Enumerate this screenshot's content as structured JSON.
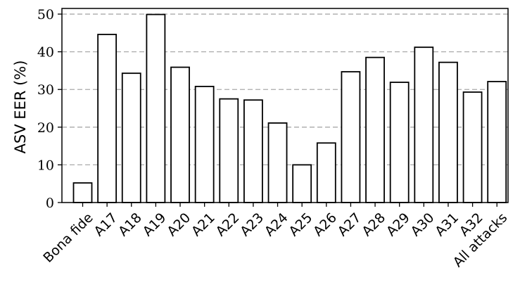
{
  "chart_data": {
    "type": "bar",
    "categories": [
      "Bona fide",
      "A17",
      "A18",
      "A19",
      "A20",
      "A21",
      "A22",
      "A23",
      "A24",
      "A25",
      "A26",
      "A27",
      "A28",
      "A29",
      "A30",
      "A31",
      "A32",
      "All attacks"
    ],
    "values": [
      5.2,
      44.6,
      34.3,
      49.9,
      35.9,
      30.8,
      27.5,
      27.2,
      21.1,
      10.0,
      15.8,
      34.7,
      38.5,
      31.9,
      41.2,
      37.2,
      29.3,
      32.1
    ],
    "xlabel": "",
    "ylabel": "ASV EER (%)",
    "ylim": [
      0,
      50
    ],
    "yticks": [
      0,
      10,
      20,
      30,
      40,
      50
    ],
    "grid": "y-dashed",
    "bar_fill": "#ffffff",
    "bar_stroke": "#000000",
    "grid_color": "#aaaaaa"
  }
}
